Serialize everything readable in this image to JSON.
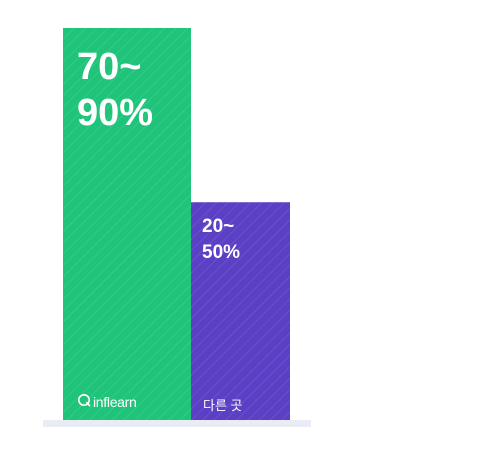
{
  "chart_data": {
    "type": "bar",
    "categories": [
      "inflearn",
      "다른 곳"
    ],
    "values": [
      90,
      50
    ],
    "ranges": [
      [
        70,
        90
      ],
      [
        20,
        50
      ]
    ],
    "data_labels": [
      "70~\n90%",
      "20~\n50%"
    ],
    "ylim": [
      0,
      90
    ],
    "title": "",
    "xlabel": "",
    "ylabel": "",
    "grid": false,
    "legend": "none",
    "colors": {
      "inflearn": "#1fc47a",
      "other": "#5b3fc4",
      "baseline": "#e9ecf2",
      "stripe": "#ffffff"
    },
    "icons": {
      "inflearn": "inflearn-logo-icon"
    }
  }
}
